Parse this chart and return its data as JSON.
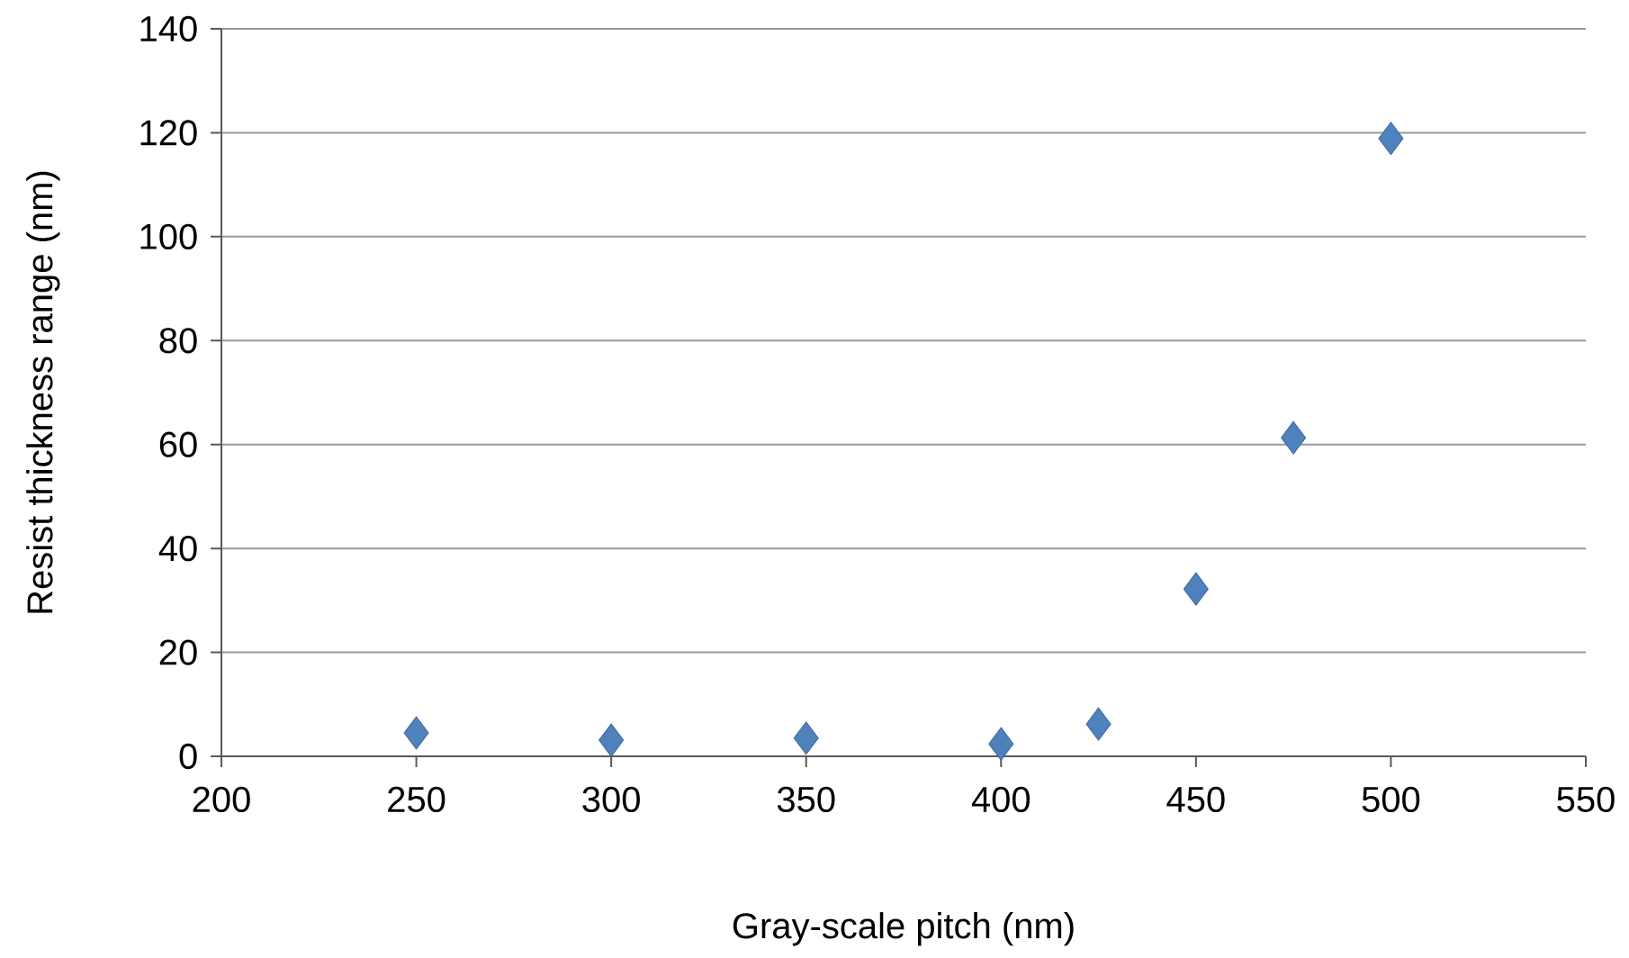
{
  "chart_data": {
    "type": "scatter",
    "xlabel": "Gray-scale pitch (nm)",
    "ylabel": "Resist thickness range (nm)",
    "x": [
      250,
      300,
      350,
      400,
      425,
      450,
      475,
      500
    ],
    "values": [
      4.5,
      3.1,
      3.5,
      2.4,
      6.2,
      32.2,
      61.3,
      118.9
    ],
    "color": "#4f81bd",
    "marker": "diamond",
    "grid": "y",
    "xlim": [
      200,
      550
    ],
    "ylim": [
      0,
      140
    ],
    "xticks": [
      200,
      250,
      300,
      350,
      400,
      450,
      500,
      550
    ],
    "yticks": [
      0,
      20,
      40,
      60,
      80,
      100,
      120,
      140
    ]
  }
}
